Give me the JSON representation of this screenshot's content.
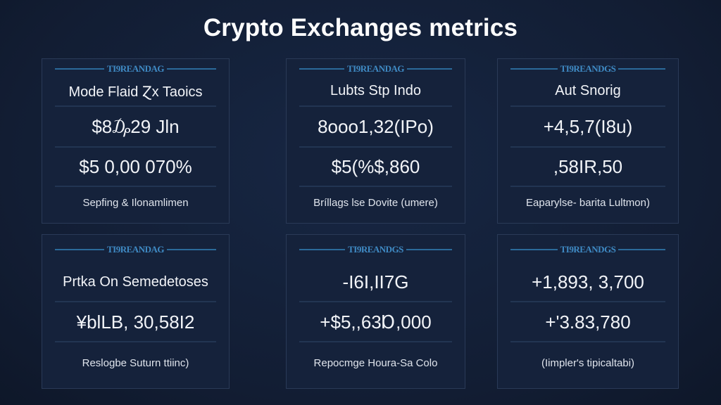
{
  "title": "Crypto Exchanges metrics",
  "cards": [
    {
      "label": "TI9REANDAG",
      "title": "Mode Flaid Ɀx Taoics",
      "value1": "$8₯29 Jln",
      "value2": "$5 0,00 070%",
      "footer": "Sepfing & Ilonamlimen"
    },
    {
      "label": "TI9REANDAG",
      "title": "Lubts Stp Indo",
      "value1": "8ooo1,32(IPo)",
      "value2": "$5(%$,860",
      "footer": "Bríllags lse Dovite (umere)"
    },
    {
      "label": "TI9REANDGS",
      "title": "Aut Snorig",
      "value1": "+4,5,7(I8u)",
      "value2": ",58IR,50",
      "footer": "Eaparylse- barita Lultmon)"
    },
    {
      "label": "TI9REANDAG",
      "title": "Prtka On Semedetoses",
      "value1": "¥blLB, 30,58I2",
      "footer": "Reslogbe Suturn ttiinc)"
    },
    {
      "label": "TI9REANDGS",
      "title": "-I6I,II7G",
      "value1": "+$5,,63Ɒ,000",
      "footer": "Repocmge Houra-Sa Colo"
    },
    {
      "label": "TI9REANDGS",
      "title": "+1,893, 3,700",
      "value1": "+'3.83,780",
      "footer": "(Iimpler's tipicaltabi)"
    }
  ]
}
